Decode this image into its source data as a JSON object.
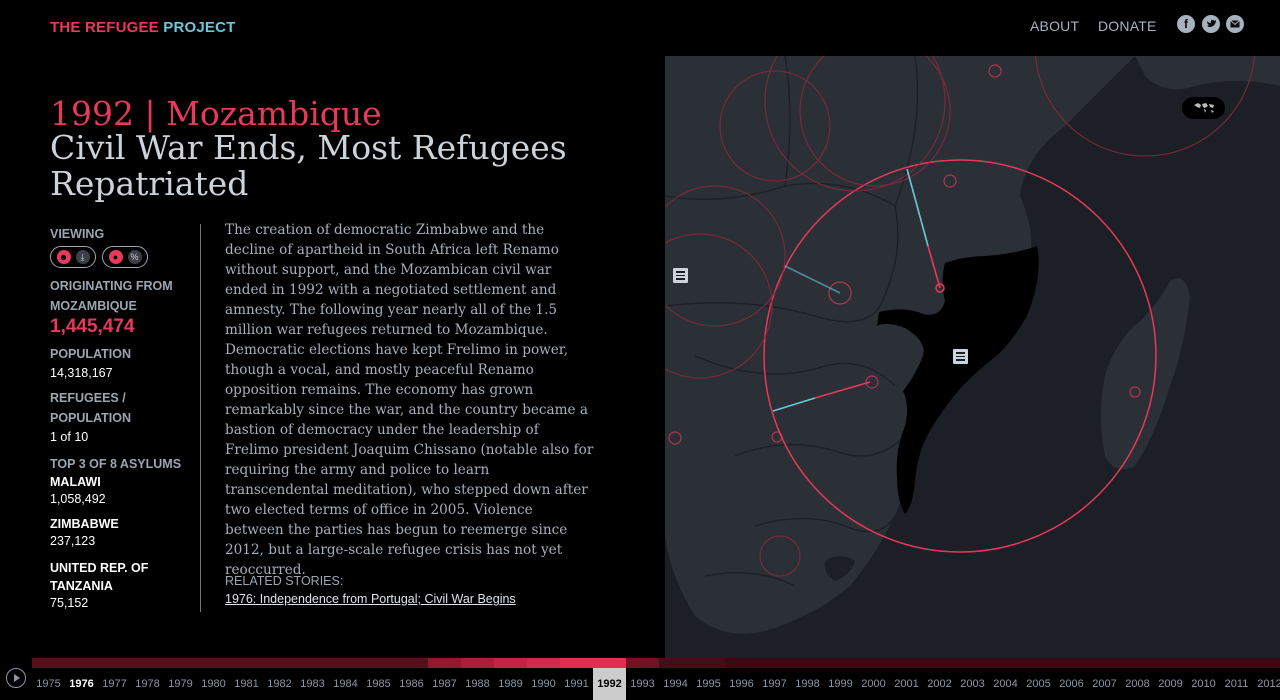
{
  "header": {
    "logo_part1": "THE REFUGEE",
    "logo_part2": "PROJECT",
    "nav_about": "ABOUT",
    "nav_donate": "DONATE",
    "social_icons": [
      "facebook-icon",
      "twitter-icon",
      "email-icon"
    ]
  },
  "story": {
    "year_country": "1992 | Mozambique",
    "headline": "Civil War Ends, Most Refugees Repatriated",
    "body": "The creation of democratic Zimbabwe and the decline of apartheid in South Africa left Renamo without support, and the Mozambican civil war ended in 1992 with a negotiated settlement and amnesty. The following year nearly all of the 1.5 million war refugees returned to Mozambique. Democratic elections have kept Frelimo in power, though a vocal, and mostly peaceful Renamo opposition remains. The economy has grown remarkably since the war, and the country became a bastion of democracy under the leadership of Frelimo president Joaquim Chissano (notable also for requiring the army and police to learn transcendental meditation), who stepped down after two elected terms of office in 2005. Violence between the parties has begun to reemerge since 2012, but a large-scale refugee crisis has not yet reoccurred.",
    "related_label": "RELATED STORIES:",
    "related_link": "1976: Independence from Portugal; Civil War Begins"
  },
  "stats": {
    "viewing_label": "VIEWING",
    "originating_label_1": "ORIGINATING FROM",
    "originating_label_2": "MOZAMBIQUE",
    "originating_value": "1,445,474",
    "population_label": "POPULATION",
    "population_value": "14,318,167",
    "ratio_label_1": "REFUGEES /",
    "ratio_label_2": "POPULATION",
    "ratio_value": "1 of 10",
    "asylums_label": "TOP 3 OF 8 ASYLUMS",
    "asylums": [
      {
        "name": "MALAWI",
        "value": "1,058,492"
      },
      {
        "name": "ZIMBABWE",
        "value": "237,123"
      },
      {
        "name_1": "UNITED REP. OF",
        "name_2": "TANZANIA",
        "value": "75,152"
      }
    ]
  },
  "timeline": {
    "years": [
      "1975",
      "1976",
      "1977",
      "1978",
      "1979",
      "1980",
      "1981",
      "1982",
      "1983",
      "1984",
      "1985",
      "1986",
      "1987",
      "1988",
      "1989",
      "1990",
      "1991",
      "1992",
      "1993",
      "1994",
      "1995",
      "1996",
      "1997",
      "1998",
      "1999",
      "2000",
      "2001",
      "2002",
      "2003",
      "2004",
      "2005",
      "2006",
      "2007",
      "2008",
      "2009",
      "2010",
      "2011",
      "2012"
    ],
    "selected_year": "1992",
    "bold_years": [
      "1976"
    ],
    "bar_colors": [
      "#5a0d1a",
      "#5a0d1a",
      "#5a0d1a",
      "#5a0d1a",
      "#5a0d1a",
      "#5a0d1a",
      "#5a0d1a",
      "#5a0d1a",
      "#5a0d1a",
      "#5a0d1a",
      "#5a0d1a",
      "#5a0d1a",
      "#8f1a30",
      "#a81f38",
      "#c02643",
      "#cf2b4b",
      "#e0304f",
      "#e0304f",
      "#6e1424",
      "#4a0a16",
      "#4a0a16",
      "#3d0812",
      "#3d0812",
      "#3d0812",
      "#3d0812",
      "#3d0812",
      "#3d0812",
      "#3d0812",
      "#3d0812",
      "#3d0812",
      "#3d0812",
      "#3d0812",
      "#3d0812",
      "#3d0812",
      "#3d0812",
      "#3d0812",
      "#3d0812",
      "#3d0812"
    ]
  },
  "colors": {
    "accent": "#e8395a",
    "accent_secondary": "#6cc7dc",
    "map_bg": "#1c1f25",
    "land": "#2a2e35",
    "country_highlight": "#000000"
  }
}
